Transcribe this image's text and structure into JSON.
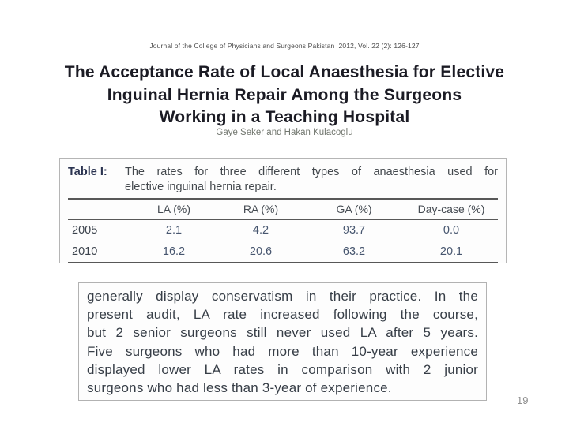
{
  "citation": "Journal of the College of Physicians and Surgeons Pakistan  2012, Vol. 22 (2): 126-127",
  "title": {
    "line1": "The Acceptance Rate of Local Anaesthesia for Elective",
    "line2": "Inguinal Hernia Repair Among the Surgeons",
    "line3": "Working in a Teaching Hospital"
  },
  "authors": "Gaye Seker and Hakan Kulacoglu",
  "table": {
    "label": "Table I:",
    "caption_line1": "The rates for three different types of anaesthesia used for",
    "caption_line2": "elective inguinal hernia repair.",
    "columns": [
      "",
      "LA (%)",
      "RA (%)",
      "GA (%)",
      "Day-case (%)"
    ],
    "rows": [
      {
        "year": "2005",
        "la": "2.1",
        "ra": "4.2",
        "ga": "93.7",
        "day_case": "0.0"
      },
      {
        "year": "2010",
        "la": "16.2",
        "ra": "20.6",
        "ga": "63.2",
        "day_case": "20.1"
      }
    ]
  },
  "excerpt": {
    "lines": [
      "generally display conservatism in their practice. In the",
      "present audit, LA rate increased following the course,",
      "but 2 senior surgeons still never used LA after 5 years.",
      "Five surgeons who had more than 10-year experience",
      "displayed lower LA rates in comparison with 2 junior",
      "surgeons who had less than 3-year of experience."
    ]
  },
  "page": {
    "number": "19"
  },
  "colors": {
    "background": "#ffffff",
    "title_text": "#1b1b24",
    "citation_text": "#4b4b4b",
    "authors_text": "#72776f",
    "table_label": "#2a3350",
    "table_caption": "#43484d",
    "table_header": "#454b52",
    "table_year": "#3c434d",
    "table_value": "#47566f",
    "box_border": "#b5b5b5",
    "rule_heavy": "#585858",
    "rule_light": "#a8a8a8",
    "excerpt_text": "#373e47",
    "page_number": "#8f8f8f"
  }
}
